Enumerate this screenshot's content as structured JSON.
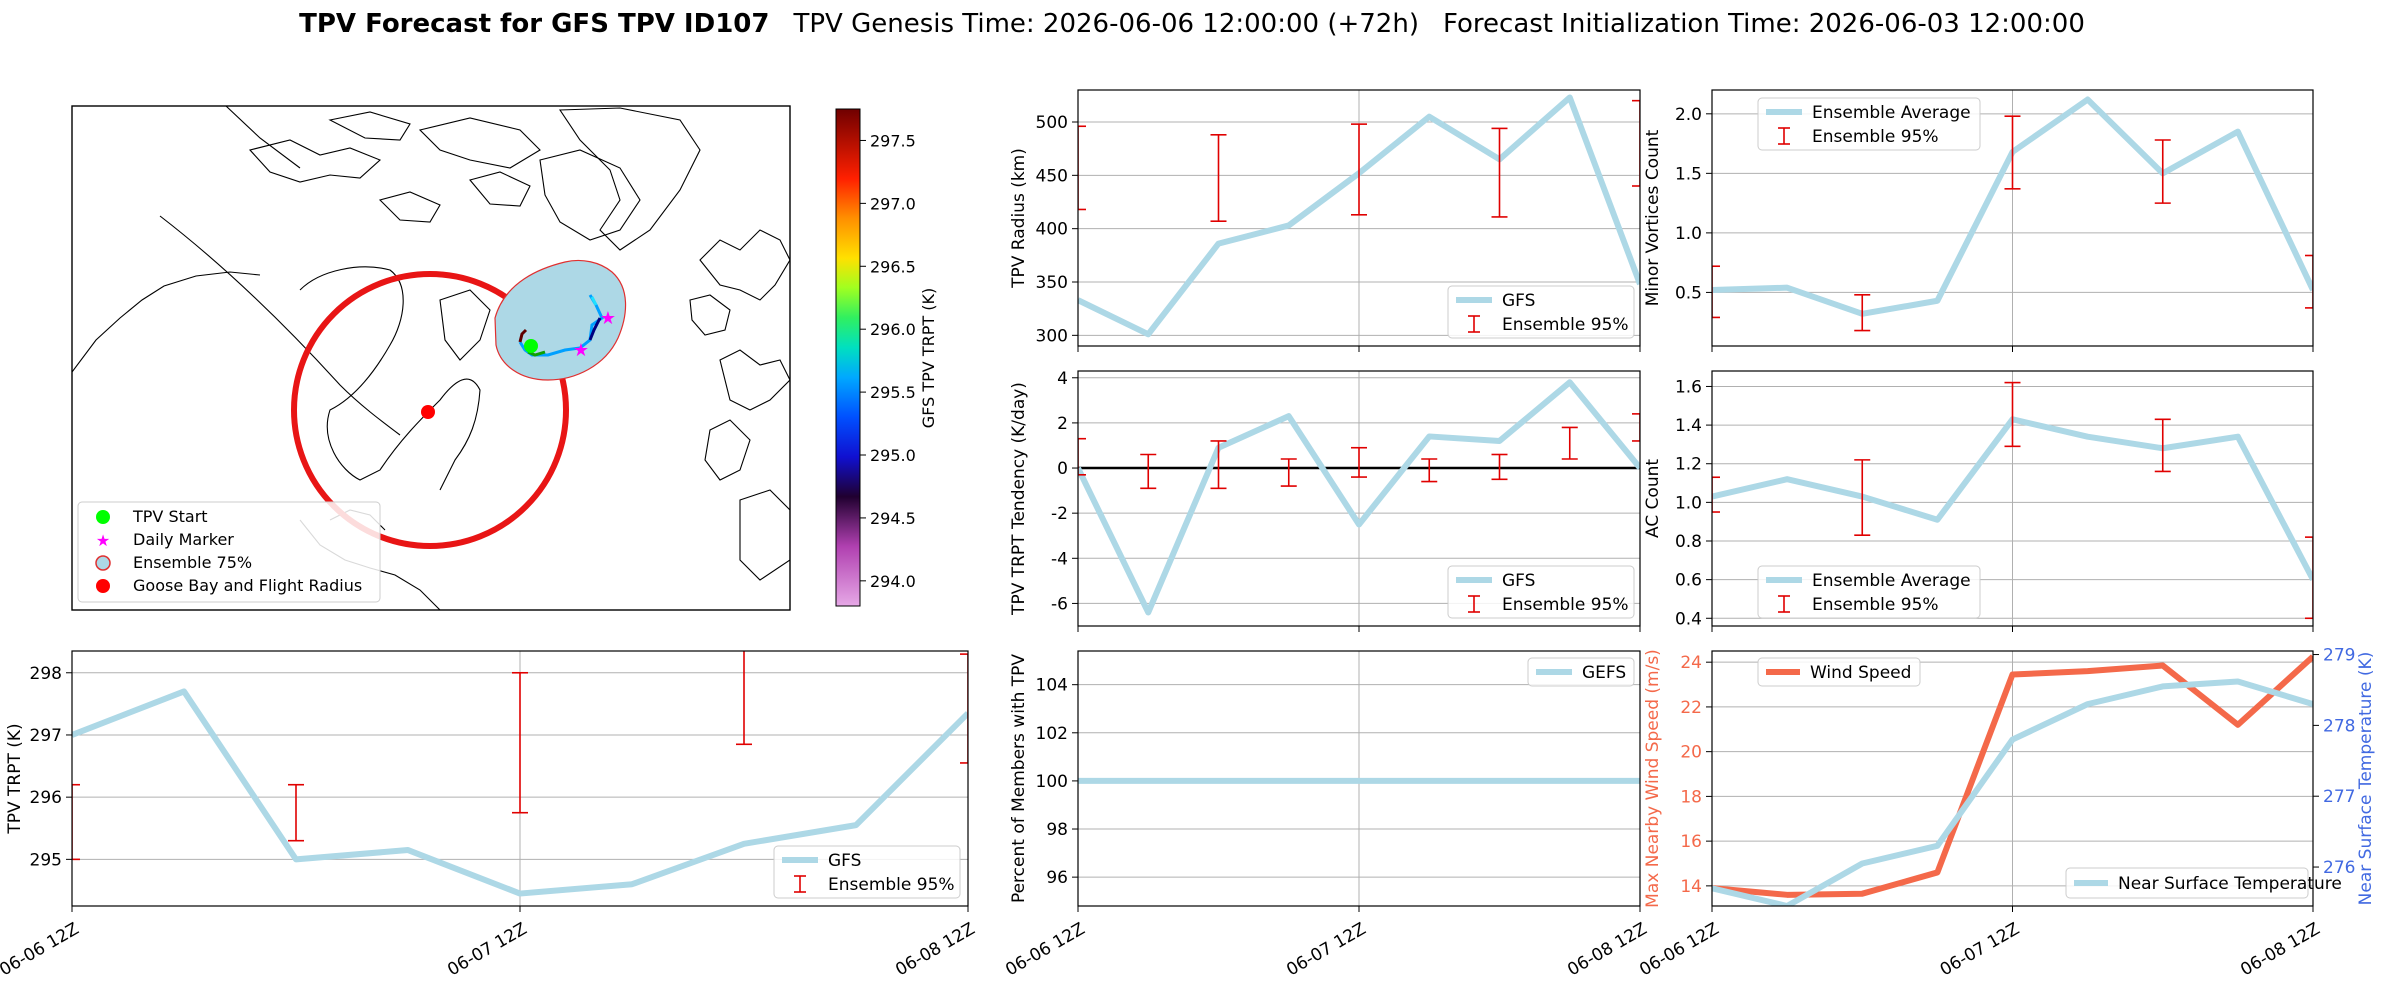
{
  "header": {
    "title_bold": "TPV Forecast for GFS TPV ID107",
    "genesis": "TPV Genesis Time: 2026-06-06 12:00:00 (+72h)",
    "init": "Forecast Initialization Time: 2026-06-03 12:00:00"
  },
  "colors": {
    "gfs_line": "#add8e6",
    "error_bar": "#e00000",
    "wind_speed": "#f4694a",
    "wind_axis": "#f4694a",
    "temp_axis": "#4169e1",
    "grid": "#b0b0b0",
    "flight_circle": "#e81515",
    "ensemble_fill": "#add8e6",
    "ensemble_edge": "#e03030",
    "start_marker": "#00ff00",
    "daily_marker": "#ff00ff",
    "goose_bay": "#ff0000"
  },
  "map": {
    "legend": [
      {
        "label": "TPV Start",
        "icon": "green-circle-icon"
      },
      {
        "label": "Daily Marker",
        "icon": "magenta-star-icon"
      },
      {
        "label": "Ensemble 75%",
        "icon": "ensemble-circle-icon"
      },
      {
        "label": "Goose Bay and Flight Radius",
        "icon": "red-circle-icon"
      }
    ],
    "colorbar": {
      "label": "GFS TPV TRPT (K)",
      "min": 293.8,
      "max": 297.75,
      "ticks": [
        "294.0",
        "294.5",
        "295.0",
        "295.5",
        "296.0",
        "296.5",
        "297.0",
        "297.5"
      ]
    }
  },
  "chart_data": [
    {
      "id": "radius",
      "type": "line",
      "ylabel": "TPV Radius (km)",
      "x": [
        0,
        6,
        12,
        18,
        24,
        30,
        36,
        42,
        48
      ],
      "ylim": [
        290,
        530
      ],
      "yticks": [
        300,
        350,
        400,
        450,
        500
      ],
      "series": [
        {
          "name": "GFS",
          "values": [
            333,
            301,
            386,
            403,
            452,
            505,
            465,
            523,
            348
          ]
        }
      ],
      "error_bars": [
        {
          "x": 0,
          "low": 418,
          "high": 496
        },
        {
          "x": 12,
          "low": 407,
          "high": 488
        },
        {
          "x": 24,
          "low": 413,
          "high": 498
        },
        {
          "x": 36,
          "low": 411,
          "high": 494
        },
        {
          "x": 48,
          "low": 440,
          "high": 520
        }
      ],
      "legend": [
        "GFS",
        "Ensemble 95%"
      ],
      "legend_loc": "lower right"
    },
    {
      "id": "minor",
      "type": "line",
      "ylabel": "Minor Vortices Count",
      "x": [
        0,
        6,
        12,
        18,
        24,
        30,
        36,
        42,
        48
      ],
      "ylim": [
        0.05,
        2.2
      ],
      "yticks": [
        "0.5",
        "1.0",
        "1.5",
        "2.0"
      ],
      "series": [
        {
          "name": "Ensemble Average",
          "values": [
            0.52,
            0.54,
            0.32,
            0.43,
            1.68,
            2.12,
            1.5,
            1.85,
            0.52
          ]
        }
      ],
      "error_bars": [
        {
          "x": 0,
          "low": 0.29,
          "high": 0.72
        },
        {
          "x": 12,
          "low": 0.18,
          "high": 0.48
        },
        {
          "x": 24,
          "low": 1.37,
          "high": 1.98
        },
        {
          "x": 36,
          "low": 1.25,
          "high": 1.78
        },
        {
          "x": 48,
          "low": 0.37,
          "high": 0.81
        }
      ],
      "legend": [
        "Ensemble Average",
        "Ensemble 95%"
      ],
      "legend_loc": "upper left"
    },
    {
      "id": "tendency",
      "type": "line",
      "ylabel": "TPV TRPT Tendency (K/day)",
      "x": [
        0,
        6,
        12,
        18,
        24,
        30,
        36,
        42,
        48
      ],
      "ylim": [
        -7,
        4.3
      ],
      "yticks": [
        -6,
        -4,
        -2,
        0,
        2,
        4
      ],
      "series": [
        {
          "name": "GFS",
          "values": [
            0,
            -6.4,
            0.9,
            2.3,
            -2.5,
            1.4,
            1.2,
            3.8,
            0
          ]
        }
      ],
      "error_bars": [
        {
          "x": 0,
          "low": -0.3,
          "high": 1.3
        },
        {
          "x": 6,
          "low": -0.9,
          "high": 0.6
        },
        {
          "x": 12,
          "low": -0.9,
          "high": 1.2
        },
        {
          "x": 18,
          "low": -0.8,
          "high": 0.4
        },
        {
          "x": 24,
          "low": -0.4,
          "high": 0.9
        },
        {
          "x": 30,
          "low": -0.6,
          "high": 0.4
        },
        {
          "x": 36,
          "low": -0.5,
          "high": 0.6
        },
        {
          "x": 42,
          "low": 0.4,
          "high": 1.8
        },
        {
          "x": 48,
          "low": 1.2,
          "high": 2.4
        }
      ],
      "zero_line": true,
      "legend": [
        "GFS",
        "Ensemble 95%"
      ],
      "legend_loc": "lower right"
    },
    {
      "id": "ac",
      "type": "line",
      "ylabel": "AC Count",
      "x": [
        0,
        6,
        12,
        18,
        24,
        30,
        36,
        42,
        48
      ],
      "ylim": [
        0.36,
        1.68
      ],
      "yticks": [
        "0.4",
        "0.6",
        "0.8",
        "1.0",
        "1.2",
        "1.4",
        "1.6"
      ],
      "series": [
        {
          "name": "Ensemble Average",
          "values": [
            1.03,
            1.12,
            1.03,
            0.91,
            1.43,
            1.34,
            1.28,
            1.34,
            0.6
          ]
        }
      ],
      "error_bars": [
        {
          "x": 0,
          "low": 0.95,
          "high": 1.13
        },
        {
          "x": 12,
          "low": 0.83,
          "high": 1.22
        },
        {
          "x": 24,
          "low": 1.29,
          "high": 1.62
        },
        {
          "x": 36,
          "low": 1.16,
          "high": 1.43
        },
        {
          "x": 48,
          "low": 0.4,
          "high": 0.82
        }
      ],
      "legend": [
        "Ensemble Average",
        "Ensemble 95%"
      ],
      "legend_loc": "lower left"
    },
    {
      "id": "trpt",
      "type": "line",
      "ylabel": "TPV TRPT (K)",
      "x": [
        0,
        6,
        12,
        18,
        24,
        30,
        36,
        42,
        48
      ],
      "xticks": [
        {
          "x": 0,
          "label": "06-06 12Z"
        },
        {
          "x": 24,
          "label": "06-07 12Z"
        },
        {
          "x": 48,
          "label": "06-08 12Z"
        }
      ],
      "ylim": [
        294.25,
        298.35
      ],
      "yticks": [
        295,
        296,
        297,
        298
      ],
      "series": [
        {
          "name": "GFS",
          "values": [
            297.0,
            297.7,
            295.0,
            295.15,
            294.45,
            294.6,
            295.25,
            295.55,
            297.35
          ]
        }
      ],
      "error_bars": [
        {
          "x": 0,
          "low": 295.0,
          "high": 296.2
        },
        {
          "x": 12,
          "low": 295.3,
          "high": 296.2
        },
        {
          "x": 24,
          "low": 295.75,
          "high": 298.0
        },
        {
          "x": 36,
          "low": 296.85,
          "high": 298.45
        },
        {
          "x": 48,
          "low": 296.55,
          "high": 298.3
        }
      ],
      "legend": [
        "GFS",
        "Ensemble 95%"
      ],
      "legend_loc": "lower right"
    },
    {
      "id": "percent",
      "type": "line",
      "ylabel": "Percent of Members with TPV",
      "x": [
        0,
        6,
        12,
        18,
        24,
        30,
        36,
        42,
        48
      ],
      "xticks": [
        {
          "x": 0,
          "label": "06-06 12Z"
        },
        {
          "x": 24,
          "label": "06-07 12Z"
        },
        {
          "x": 48,
          "label": "06-08 12Z"
        }
      ],
      "ylim": [
        94.8,
        105.4
      ],
      "yticks": [
        96,
        98,
        100,
        102,
        104
      ],
      "series": [
        {
          "name": "GEFS",
          "values": [
            100,
            100,
            100,
            100,
            100,
            100,
            100,
            100,
            100
          ]
        }
      ],
      "error_bars": [],
      "legend": [
        "GEFS"
      ],
      "legend_loc": "upper right"
    },
    {
      "id": "wind",
      "type": "line",
      "ylabel": "Max Nearby Wind Speed (m/s)",
      "ylabel_right": "Near Surface Temperature (K)",
      "x": [
        0,
        6,
        12,
        18,
        24,
        30,
        36,
        42,
        48
      ],
      "xticks": [
        {
          "x": 0,
          "label": "06-06 12Z"
        },
        {
          "x": 24,
          "label": "06-07 12Z"
        },
        {
          "x": 48,
          "label": "06-08 12Z"
        }
      ],
      "ylim": [
        13.1,
        24.5
      ],
      "yticks": [
        14,
        16,
        18,
        20,
        22,
        24
      ],
      "ylim_right": [
        275.45,
        279.05
      ],
      "yticks_right": [
        276,
        277,
        278,
        279
      ],
      "series": [
        {
          "name": "Wind Speed",
          "axis": "left",
          "values": [
            13.9,
            13.6,
            13.65,
            14.6,
            23.45,
            23.6,
            23.85,
            21.2,
            24.25
          ]
        },
        {
          "name": "Near Surface Temperature",
          "axis": "right",
          "values": [
            275.7,
            275.45,
            276.05,
            276.3,
            277.8,
            278.3,
            278.55,
            278.62,
            278.3
          ]
        }
      ],
      "error_bars": [],
      "legend": [
        "Wind Speed",
        "Near Surface Temperature"
      ]
    }
  ]
}
